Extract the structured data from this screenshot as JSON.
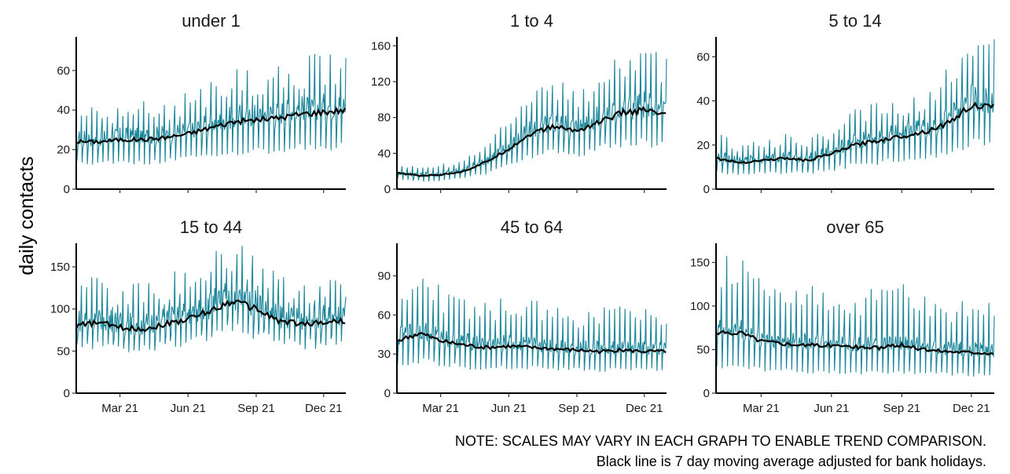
{
  "chart_data": {
    "type": "line",
    "ylabel": "daily contacts",
    "x_ticks": [
      "Mar 21",
      "Jun 21",
      "Sep 21",
      "Dec 21"
    ],
    "x_range": [
      "2021-01-01",
      "2021-12-31"
    ],
    "series_colors": {
      "daily": "#1a8599",
      "moving_average": "#000000"
    },
    "series": [
      {
        "name": "daily"
      },
      {
        "name": "7 day moving average"
      }
    ],
    "panels": [
      {
        "title": "under 1",
        "ylim": [
          0,
          77
        ],
        "yticks": [
          0,
          20,
          40,
          60
        ],
        "trend_points": [
          [
            "2021-01-01",
            24
          ],
          [
            "2021-02-01",
            24
          ],
          [
            "2021-03-01",
            25
          ],
          [
            "2021-04-01",
            25
          ],
          [
            "2021-05-01",
            26
          ],
          [
            "2021-06-01",
            28
          ],
          [
            "2021-07-01",
            31
          ],
          [
            "2021-08-01",
            34
          ],
          [
            "2021-09-01",
            35
          ],
          [
            "2021-10-01",
            36
          ],
          [
            "2021-11-01",
            38
          ],
          [
            "2021-12-01",
            39
          ],
          [
            "2021-12-31",
            40
          ]
        ],
        "daily_range_fraction": [
          0.55,
          1.55
        ]
      },
      {
        "title": "1 to 4",
        "ylim": [
          0,
          170
        ],
        "yticks": [
          0,
          40,
          80,
          120,
          160
        ],
        "trend_points": [
          [
            "2021-01-01",
            18
          ],
          [
            "2021-02-01",
            15
          ],
          [
            "2021-03-01",
            16
          ],
          [
            "2021-04-01",
            20
          ],
          [
            "2021-05-01",
            30
          ],
          [
            "2021-06-01",
            45
          ],
          [
            "2021-07-01",
            62
          ],
          [
            "2021-08-01",
            70
          ],
          [
            "2021-09-01",
            65
          ],
          [
            "2021-10-01",
            75
          ],
          [
            "2021-11-01",
            85
          ],
          [
            "2021-12-01",
            88
          ],
          [
            "2021-12-31",
            82
          ]
        ],
        "daily_range_fraction": [
          0.6,
          1.6
        ]
      },
      {
        "title": "5 to 14",
        "ylim": [
          0,
          69
        ],
        "yticks": [
          0,
          20,
          40,
          60
        ],
        "trend_points": [
          [
            "2021-01-01",
            14
          ],
          [
            "2021-02-01",
            12
          ],
          [
            "2021-03-01",
            13
          ],
          [
            "2021-04-01",
            14
          ],
          [
            "2021-05-01",
            13
          ],
          [
            "2021-06-01",
            16
          ],
          [
            "2021-07-01",
            20
          ],
          [
            "2021-08-01",
            22
          ],
          [
            "2021-09-01",
            24
          ],
          [
            "2021-10-01",
            26
          ],
          [
            "2021-11-01",
            30
          ],
          [
            "2021-12-01",
            38
          ],
          [
            "2021-12-31",
            37
          ]
        ],
        "daily_range_fraction": [
          0.55,
          1.6
        ]
      },
      {
        "title": "15 to 44",
        "ylim": [
          0,
          178
        ],
        "yticks": [
          0,
          50,
          100,
          150
        ],
        "trend_points": [
          [
            "2021-01-01",
            80
          ],
          [
            "2021-02-01",
            84
          ],
          [
            "2021-03-01",
            78
          ],
          [
            "2021-04-01",
            76
          ],
          [
            "2021-05-01",
            82
          ],
          [
            "2021-06-01",
            88
          ],
          [
            "2021-07-01",
            98
          ],
          [
            "2021-08-01",
            110
          ],
          [
            "2021-09-01",
            100
          ],
          [
            "2021-10-01",
            86
          ],
          [
            "2021-11-01",
            82
          ],
          [
            "2021-12-01",
            84
          ],
          [
            "2021-12-31",
            86
          ]
        ],
        "daily_range_fraction": [
          0.7,
          1.5
        ]
      },
      {
        "title": "45 to 64",
        "ylim": [
          0,
          115
        ],
        "yticks": [
          0,
          30,
          60,
          90
        ],
        "trend_points": [
          [
            "2021-01-01",
            40
          ],
          [
            "2021-02-01",
            46
          ],
          [
            "2021-03-01",
            40
          ],
          [
            "2021-04-01",
            37
          ],
          [
            "2021-05-01",
            35
          ],
          [
            "2021-06-01",
            36
          ],
          [
            "2021-07-01",
            35
          ],
          [
            "2021-08-01",
            34
          ],
          [
            "2021-09-01",
            33
          ],
          [
            "2021-10-01",
            32
          ],
          [
            "2021-11-01",
            33
          ],
          [
            "2021-12-01",
            32
          ],
          [
            "2021-12-31",
            32
          ]
        ],
        "daily_range_fraction": [
          0.55,
          1.8
        ]
      },
      {
        "title": "over 65",
        "ylim": [
          0,
          172
        ],
        "yticks": [
          0,
          50,
          100,
          150
        ],
        "trend_points": [
          [
            "2021-01-01",
            68
          ],
          [
            "2021-02-01",
            70
          ],
          [
            "2021-03-01",
            60
          ],
          [
            "2021-04-01",
            57
          ],
          [
            "2021-05-01",
            55
          ],
          [
            "2021-06-01",
            55
          ],
          [
            "2021-07-01",
            53
          ],
          [
            "2021-08-01",
            52
          ],
          [
            "2021-09-01",
            55
          ],
          [
            "2021-10-01",
            50
          ],
          [
            "2021-11-01",
            48
          ],
          [
            "2021-12-01",
            47
          ],
          [
            "2021-12-31",
            46
          ]
        ],
        "daily_range_fraction": [
          0.45,
          2.0
        ]
      }
    ]
  },
  "notes": {
    "line1": "NOTE: SCALES MAY VARY IN EACH GRAPH TO ENABLE TREND COMPARISON.",
    "line2": "Black line is 7 day moving average adjusted for bank holidays."
  }
}
